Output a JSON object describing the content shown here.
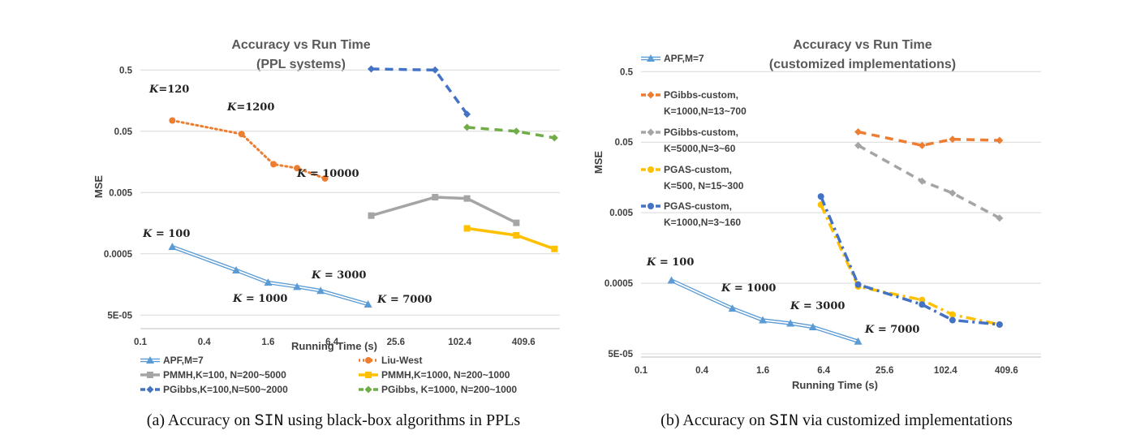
{
  "chart_data": [
    {
      "type": "line",
      "title": "Accuracy vs Run Time",
      "subtitle": "(PPL systems)",
      "xlabel": "Running Time (s)",
      "ylabel": "MSE",
      "x_scale": "log2",
      "y_scale": "log10",
      "xlim": [
        0.1,
        900
      ],
      "ylim": [
        3e-05,
        0.75
      ],
      "x_ticks": [
        "0.1",
        "0.4",
        "1.6",
        "6.4",
        "25.6",
        "102.4",
        "409.6"
      ],
      "y_ticks": [
        "0.5",
        "0.05",
        "0.005",
        "0.0005",
        "5E-05"
      ],
      "grid": true,
      "legend_position": "bottom",
      "caption": {
        "prefix": "(a)  Accuracy on ",
        "code": "SIN",
        "suffix": " using black-box algorithms in PPLs"
      },
      "series": [
        {
          "name": "APF,M=7",
          "color": "#5b9bd5",
          "style": "double",
          "marker": "triangle",
          "x": [
            0.2,
            0.8,
            1.6,
            3.0,
            5.0,
            14.0
          ],
          "y": [
            0.00065,
            0.00027,
            0.00017,
            0.000145,
            0.000125,
            7.5e-05
          ]
        },
        {
          "name": "Liu-West",
          "color": "#ed7d31",
          "style": "dotted",
          "marker": "circle",
          "x": [
            0.2,
            0.9,
            1.8,
            3.0,
            5.5
          ],
          "y": [
            0.075,
            0.045,
            0.0145,
            0.0125,
            0.0085
          ]
        },
        {
          "name": "PMMH,K=100, N=200~5000",
          "color": "#a5a5a5",
          "style": "solid",
          "marker": "square",
          "x": [
            15,
            60,
            120,
            350
          ],
          "y": [
            0.0021,
            0.0042,
            0.004,
            0.0016
          ]
        },
        {
          "name": "PMMH,K=1000, N=200~1000",
          "color": "#ffc000",
          "style": "solid",
          "marker": "square",
          "x": [
            120,
            350,
            800
          ],
          "y": [
            0.0013,
            0.001,
            0.0006
          ]
        },
        {
          "name": "PGibbs,K=100,N=500~2000",
          "color": "#4472c4",
          "style": "dashed",
          "marker": "diamond",
          "x": [
            15,
            60,
            120
          ],
          "y": [
            0.52,
            0.5,
            0.095
          ]
        },
        {
          "name": "PGibbs, K=1000, N=200~1000",
          "color": "#70ad47",
          "style": "dashed",
          "marker": "diamond",
          "x": [
            120,
            350,
            800
          ],
          "y": [
            0.058,
            0.05,
            0.039
          ]
        }
      ],
      "annotations": [
        {
          "pre": "K",
          "post": "=120"
        },
        {
          "pre": "K",
          "post": "=1200"
        },
        {
          "pre": "K",
          "post": " = 10000"
        },
        {
          "pre": "K",
          "post": " = 100"
        },
        {
          "pre": "K",
          "post": " = 3000"
        },
        {
          "pre": "K",
          "post": " = 1000"
        },
        {
          "pre": "K",
          "post": " = 7000"
        }
      ]
    },
    {
      "type": "line",
      "title": "Accuracy vs Run Time",
      "subtitle": "(customized implementations)",
      "xlabel": "Running Time (s)",
      "ylabel": "MSE",
      "x_scale": "log2",
      "y_scale": "log10",
      "xlim": [
        0.1,
        900
      ],
      "ylim": [
        4.5e-05,
        0.75
      ],
      "x_ticks": [
        "0.1",
        "0.4",
        "1.6",
        "6.4",
        "25.6",
        "102.4",
        "409.6"
      ],
      "y_ticks": [
        "0.5",
        "0.05",
        "0.005",
        "0.0005",
        "5E-05"
      ],
      "grid": true,
      "legend_position": "left",
      "caption": {
        "prefix": "(b)  Accuracy on ",
        "code": "SIN",
        "suffix": " via customized implementations"
      },
      "series": [
        {
          "name": "APF,M=7",
          "color": "#5b9bd5",
          "style": "double",
          "marker": "triangle",
          "x": [
            0.2,
            0.8,
            1.6,
            3.0,
            5.0,
            14.0
          ],
          "y": [
            0.00055,
            0.00022,
            0.00015,
            0.000135,
            0.00012,
            7.5e-05
          ]
        },
        {
          "name": "PGibbs-custom,\nK=1000,N=13~700",
          "color": "#ed7d31",
          "style": "dashed",
          "marker": "diamond",
          "x": [
            14,
            60,
            120,
            350
          ],
          "y": [
            0.07,
            0.045,
            0.055,
            0.053
          ]
        },
        {
          "name": "PGibbs-custom,\nK=5000,N=3~60",
          "color": "#a5a5a5",
          "style": "dashed",
          "marker": "diamond",
          "x": [
            14,
            60,
            120,
            350
          ],
          "y": [
            0.045,
            0.014,
            0.0095,
            0.0042
          ]
        },
        {
          "name": "PGAS-custom,\nK=500, N=15~300",
          "color": "#ffc000",
          "style": "dashdot",
          "marker": "circle",
          "x": [
            6,
            14,
            60,
            120,
            350
          ],
          "y": [
            0.0065,
            0.00045,
            0.00029,
            0.00018,
            0.00013
          ]
        },
        {
          "name": "PGAS-custom,\nK=1000,N=3~160",
          "color": "#4472c4",
          "style": "dashdot",
          "marker": "circle",
          "x": [
            6,
            14,
            60,
            120,
            350
          ],
          "y": [
            0.0085,
            0.00048,
            0.00025,
            0.00015,
            0.00013
          ]
        }
      ],
      "annotations": [
        {
          "pre": "K",
          "post": " = 100"
        },
        {
          "pre": "K",
          "post": " = 1000"
        },
        {
          "pre": "K",
          "post": " = 3000"
        },
        {
          "pre": "K",
          "post": " = 7000"
        }
      ]
    }
  ]
}
